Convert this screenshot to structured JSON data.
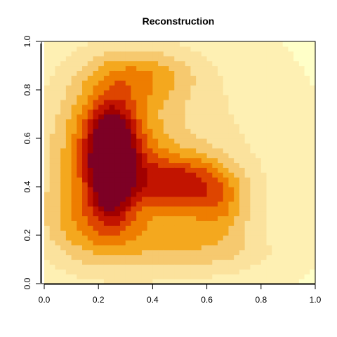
{
  "chart_data": {
    "type": "heatmap",
    "title": "Reconstruction",
    "xlabel": "",
    "ylabel": "",
    "xlim": [
      0,
      1
    ],
    "ylim": [
      0,
      1
    ],
    "x_ticks": [
      "0.0",
      "0.2",
      "0.4",
      "0.6",
      "0.8",
      "1.0"
    ],
    "y_ticks": [
      "0.0",
      "0.2",
      "0.4",
      "0.6",
      "0.8",
      "1.0"
    ],
    "grid": false,
    "legend": "none",
    "colormap": [
      "#FFFFC8",
      "#FEF0B3",
      "#FBE29D",
      "#F6C96F",
      "#F4A81E",
      "#EE7D00",
      "#DE4500",
      "#C21400",
      "#A10000",
      "#7D0025"
    ],
    "grid_size": [
      50,
      50
    ],
    "field_components": [
      {
        "x": 0.25,
        "y": 0.5,
        "sx": 0.05,
        "sy": 0.13,
        "amp": 1.0
      },
      {
        "x": 0.24,
        "y": 0.58,
        "sx": 0.11,
        "sy": 0.17,
        "amp": 0.62
      },
      {
        "x": 0.5,
        "y": 0.42,
        "sx": 0.13,
        "sy": 0.08,
        "amp": 0.58
      },
      {
        "x": 0.65,
        "y": 0.32,
        "sx": 0.08,
        "sy": 0.09,
        "amp": 0.28
      },
      {
        "x": 0.36,
        "y": 0.86,
        "sx": 0.14,
        "sy": 0.08,
        "amp": 0.32
      },
      {
        "x": 0.17,
        "y": 0.26,
        "sx": 0.12,
        "sy": 0.12,
        "amp": 0.3
      },
      {
        "x": 0.45,
        "y": 0.18,
        "sx": 0.2,
        "sy": 0.09,
        "amp": 0.22
      },
      {
        "x": 0.35,
        "y": 0.5,
        "sx": 0.32,
        "sy": 0.34,
        "amp": 0.32
      },
      {
        "x": 0.7,
        "y": 0.12,
        "sx": 0.15,
        "sy": 0.06,
        "amp": 0.1
      }
    ],
    "field_baseline": 0.1
  }
}
